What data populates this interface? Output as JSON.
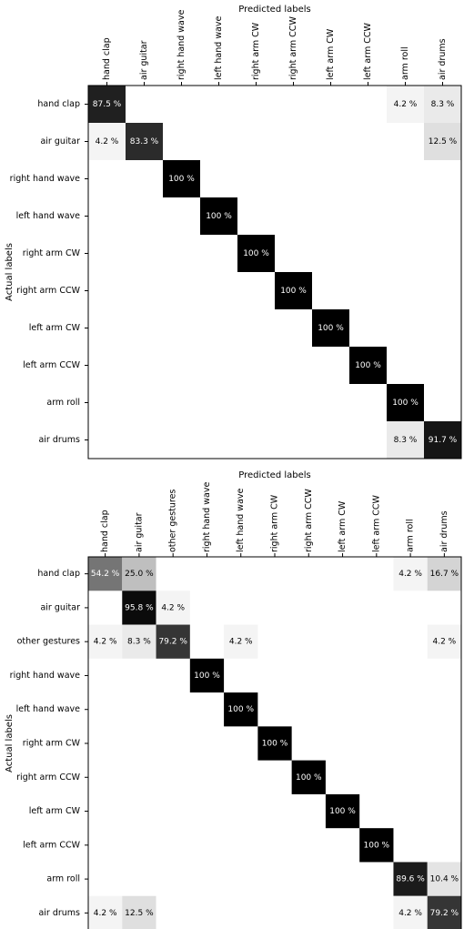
{
  "chart_data": [
    {
      "type": "heatmap",
      "xlabel": "Predicted labels",
      "ylabel": "Actual labels",
      "x_categories": [
        "hand clap",
        "air guitar",
        "right hand wave",
        "left hand wave",
        "right arm CW",
        "right arm CCW",
        "left arm CW",
        "left arm CCW",
        "arm roll",
        "air drums"
      ],
      "y_categories": [
        "hand clap",
        "air guitar",
        "right hand wave",
        "left hand wave",
        "right arm CW",
        "right arm CCW",
        "left arm CW",
        "left arm CCW",
        "arm roll",
        "air drums"
      ],
      "value_unit": "%",
      "values": [
        [
          87.5,
          null,
          null,
          null,
          null,
          null,
          null,
          null,
          4.2,
          8.3
        ],
        [
          4.2,
          83.3,
          null,
          null,
          null,
          null,
          null,
          null,
          null,
          12.5
        ],
        [
          null,
          null,
          100,
          null,
          null,
          null,
          null,
          null,
          null,
          null
        ],
        [
          null,
          null,
          null,
          100,
          null,
          null,
          null,
          null,
          null,
          null
        ],
        [
          null,
          null,
          null,
          null,
          100,
          null,
          null,
          null,
          null,
          null
        ],
        [
          null,
          null,
          null,
          null,
          null,
          100,
          null,
          null,
          null,
          null
        ],
        [
          null,
          null,
          null,
          null,
          null,
          null,
          100,
          null,
          null,
          null
        ],
        [
          null,
          null,
          null,
          null,
          null,
          null,
          null,
          100,
          null,
          null
        ],
        [
          null,
          null,
          null,
          null,
          null,
          null,
          null,
          null,
          100,
          null
        ],
        [
          null,
          null,
          null,
          null,
          null,
          null,
          null,
          null,
          8.3,
          91.7
        ]
      ],
      "colormap": [
        "#ffffff",
        "#000000"
      ]
    },
    {
      "type": "heatmap",
      "xlabel": "Predicted labels",
      "ylabel": "Actual labels",
      "x_categories": [
        "hand clap",
        "air guitar",
        "other gestures",
        "right hand wave",
        "left hand wave",
        "right arm CW",
        "right arm CCW",
        "left arm CW",
        "left arm CCW",
        "arm roll",
        "air drums"
      ],
      "y_categories": [
        "hand clap",
        "air guitar",
        "other gestures",
        "right hand wave",
        "left hand wave",
        "right arm CW",
        "right arm CCW",
        "left arm CW",
        "left arm CCW",
        "arm roll",
        "air drums"
      ],
      "value_unit": "%",
      "values": [
        [
          54.2,
          25.0,
          null,
          null,
          null,
          null,
          null,
          null,
          null,
          4.2,
          16.7
        ],
        [
          null,
          95.8,
          4.2,
          null,
          null,
          null,
          null,
          null,
          null,
          null,
          null
        ],
        [
          4.2,
          8.3,
          79.2,
          null,
          4.2,
          null,
          null,
          null,
          null,
          null,
          4.2
        ],
        [
          null,
          null,
          null,
          100,
          null,
          null,
          null,
          null,
          null,
          null,
          null
        ],
        [
          null,
          null,
          null,
          null,
          100,
          null,
          null,
          null,
          null,
          null,
          null
        ],
        [
          null,
          null,
          null,
          null,
          null,
          100,
          null,
          null,
          null,
          null,
          null
        ],
        [
          null,
          null,
          null,
          null,
          null,
          null,
          100,
          null,
          null,
          null,
          null
        ],
        [
          null,
          null,
          null,
          null,
          null,
          null,
          null,
          100,
          null,
          null,
          null
        ],
        [
          null,
          null,
          null,
          null,
          null,
          null,
          null,
          null,
          100,
          null,
          null
        ],
        [
          null,
          null,
          null,
          null,
          null,
          null,
          null,
          null,
          null,
          89.6,
          10.4
        ],
        [
          4.2,
          12.5,
          null,
          null,
          null,
          null,
          null,
          null,
          null,
          4.2,
          79.2
        ]
      ],
      "colormap": [
        "#ffffff",
        "#000000"
      ]
    }
  ]
}
